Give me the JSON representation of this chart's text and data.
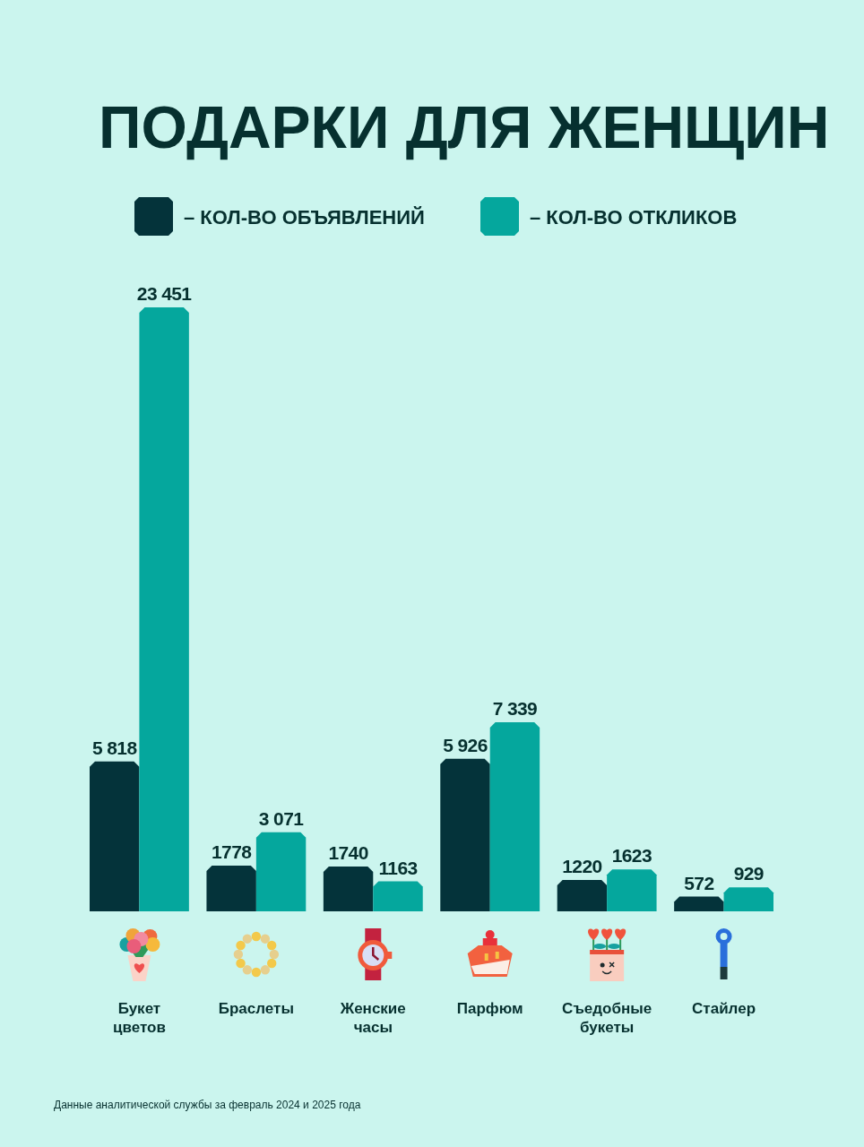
{
  "chart_data": {
    "type": "bar",
    "title": "ПОДАРКИ ДЛЯ ЖЕНЩИН",
    "categories": [
      "Букет цветов",
      "Браслеты",
      "Женские часы",
      "Парфюм",
      "Съедобные букеты",
      "Стайлер"
    ],
    "series": [
      {
        "name": "– КОЛ-ВО ОБЪЯВЛЕНИЙ",
        "color": "#04333a",
        "values": [
          5818,
          1778,
          1740,
          5926,
          1220,
          572
        ],
        "value_labels": [
          "5 818",
          "1778",
          "1740",
          "5 926",
          "1220",
          "572"
        ]
      },
      {
        "name": "– КОЛ-ВО ОТКЛИКОВ",
        "color": "#05a79d",
        "values": [
          23451,
          3071,
          1163,
          7339,
          1623,
          929
        ],
        "value_labels": [
          "23 451",
          "3 071",
          "1163",
          "7 339",
          "1623",
          "929"
        ]
      }
    ],
    "legend": "top",
    "annotations": [
      "Данные аналитической службы за февраль 2024 и 2025 года"
    ]
  }
}
